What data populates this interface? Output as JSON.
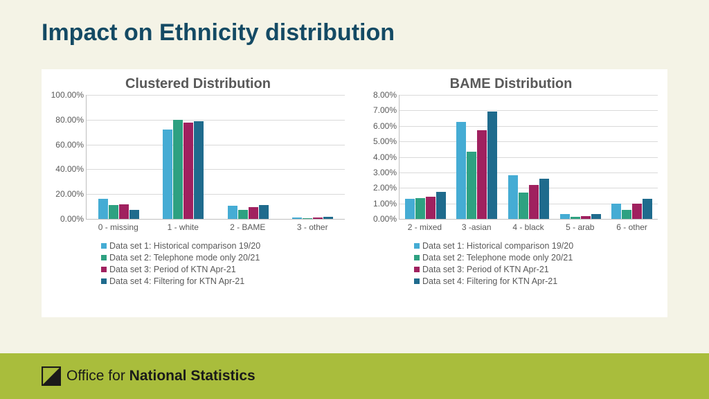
{
  "title": "Impact on Ethnicity distribution",
  "colors": {
    "series": [
      "#45acd4",
      "#2ea181",
      "#a0215f",
      "#1f6b8d"
    ],
    "grid": "#d9d9d9",
    "axis": "#bfbfbf",
    "text": "#595959",
    "title": "#144a64",
    "page_bg": "#f4f3e6",
    "panel_bg": "#ffffff",
    "footer_bg": "#a9bd3c"
  },
  "legend_items": [
    "Data set 1: Historical comparison 19/20",
    "Data set 2: Telephone mode only  20/21",
    "Data set 3: Period of KTN  Apr-21",
    "Data set 4: Filtering for KTN  Apr-21"
  ],
  "charts": [
    {
      "title": "Clustered Distribution",
      "ymax": 100,
      "ystep": 20,
      "ysuffix": ".00%",
      "categories": [
        "0 - missing",
        "1 - white",
        "2 - BAME",
        "3 - other"
      ],
      "series": [
        [
          16,
          72,
          10.5,
          1.2
        ],
        [
          11,
          80,
          7.5,
          0.8
        ],
        [
          12,
          77.5,
          9.5,
          1
        ],
        [
          7.5,
          79,
          11,
          1.5
        ]
      ]
    },
    {
      "title": "BAME Distribution",
      "ymax": 8,
      "ystep": 1,
      "ysuffix": ".00%",
      "categories": [
        "2 - mixed",
        "3 -asian",
        "4 - black",
        "5 - arab",
        "6 - other"
      ],
      "series": [
        [
          1.3,
          6.25,
          2.8,
          0.3,
          1.0
        ],
        [
          1.35,
          4.35,
          1.7,
          0.15,
          0.6
        ],
        [
          1.45,
          5.7,
          2.2,
          0.2,
          1.0
        ],
        [
          1.75,
          6.95,
          2.6,
          0.3,
          1.3
        ]
      ]
    }
  ],
  "footer": {
    "org_prefix": "Office for ",
    "org_bold": "National Statistics"
  }
}
